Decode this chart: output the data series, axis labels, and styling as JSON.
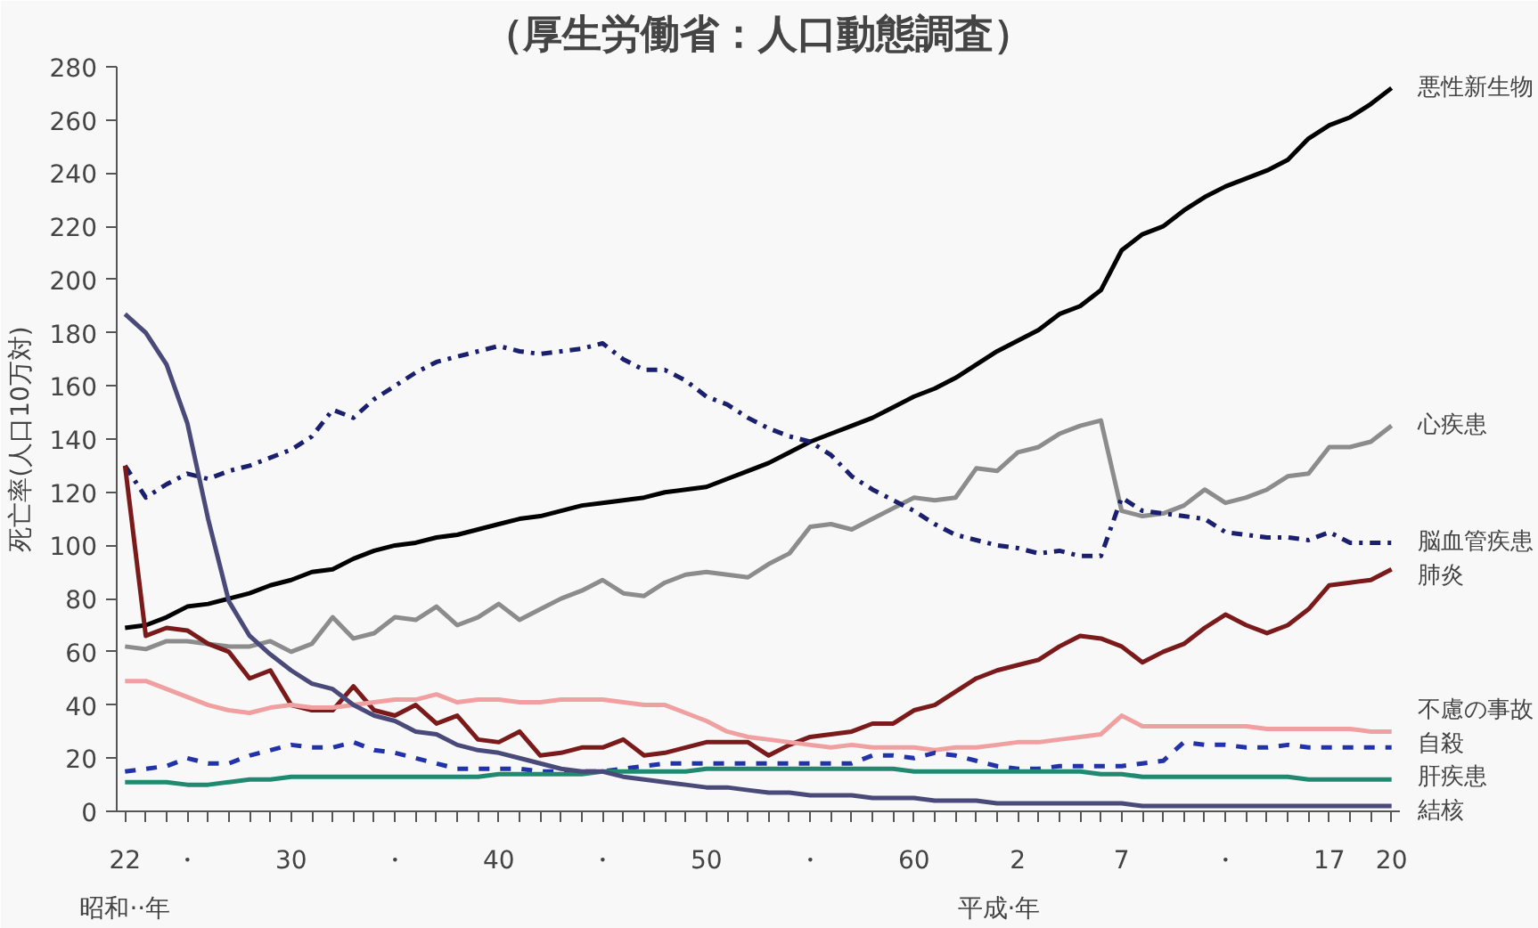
{
  "chart_data": {
    "type": "line",
    "title": "（厚生労働省：人口動態調査）",
    "ylabel": "死亡率(人口10万対)",
    "annotations": [
      "昭和··年",
      "平成·年"
    ],
    "ylim": [
      0,
      280
    ],
    "yticks": [
      0,
      20,
      40,
      60,
      80,
      100,
      120,
      140,
      160,
      180,
      200,
      220,
      240,
      260,
      280
    ],
    "categories": [
      "22",
      null,
      null,
      "・",
      null,
      null,
      null,
      null,
      "30",
      null,
      null,
      null,
      null,
      "・",
      null,
      null,
      null,
      null,
      "40",
      null,
      null,
      null,
      null,
      "・",
      null,
      null,
      null,
      null,
      "50",
      null,
      null,
      null,
      null,
      "・",
      null,
      null,
      null,
      null,
      "60",
      null,
      null,
      null,
      null,
      "2",
      null,
      null,
      null,
      null,
      "7",
      null,
      null,
      null,
      null,
      "・",
      null,
      null,
      null,
      null,
      "17",
      null,
      null,
      "20"
    ],
    "grid": false,
    "marker": "none",
    "series": [
      {
        "name": "悪性新生物",
        "color": "#000000",
        "line_style": "solid",
        "values": [
          69,
          70,
          73,
          77,
          78,
          80,
          82,
          85,
          87,
          90,
          91,
          95,
          98,
          100,
          101,
          103,
          104,
          106,
          108,
          110,
          111,
          113,
          115,
          116,
          117,
          118,
          120,
          121,
          122,
          125,
          128,
          131,
          135,
          139,
          142,
          145,
          148,
          152,
          156,
          159,
          163,
          168,
          173,
          177,
          181,
          187,
          190,
          196,
          211,
          217,
          220,
          226,
          231,
          235,
          238,
          241,
          245,
          253,
          258,
          261,
          266,
          272
        ]
      },
      {
        "name": "心疾患",
        "color": "#8c8c8c",
        "line_style": "solid",
        "values": [
          62,
          61,
          64,
          64,
          63,
          62,
          62,
          64,
          60,
          63,
          73,
          65,
          67,
          73,
          72,
          77,
          70,
          73,
          78,
          72,
          76,
          80,
          83,
          87,
          82,
          81,
          86,
          89,
          90,
          89,
          88,
          93,
          97,
          107,
          108,
          106,
          110,
          114,
          118,
          117,
          118,
          129,
          128,
          135,
          137,
          142,
          145,
          147,
          113,
          111,
          112,
          115,
          121,
          116,
          118,
          121,
          126,
          127,
          137,
          137,
          139,
          145
        ]
      },
      {
        "name": "脳血管疾患",
        "color": "#1a1f6e",
        "line_style": "dashdot",
        "values": [
          130,
          118,
          123,
          127,
          125,
          128,
          130,
          133,
          136,
          141,
          151,
          148,
          155,
          160,
          165,
          169,
          171,
          173,
          175,
          173,
          172,
          173,
          174,
          176,
          170,
          166,
          166,
          162,
          156,
          153,
          148,
          144,
          141,
          139,
          134,
          126,
          121,
          117,
          113,
          108,
          104,
          102,
          100,
          99,
          97,
          98,
          96,
          96,
          118,
          113,
          112,
          111,
          110,
          105,
          104,
          103,
          103,
          102,
          105,
          101,
          101,
          101
        ]
      },
      {
        "name": "肺炎",
        "color": "#7a1a1a",
        "line_style": "solid",
        "values": [
          130,
          66,
          69,
          68,
          63,
          60,
          50,
          53,
          40,
          38,
          38,
          47,
          38,
          36,
          40,
          33,
          36,
          27,
          26,
          30,
          21,
          22,
          24,
          24,
          27,
          21,
          22,
          24,
          26,
          26,
          26,
          21,
          25,
          28,
          29,
          30,
          33,
          33,
          38,
          40,
          45,
          50,
          53,
          55,
          57,
          62,
          66,
          65,
          62,
          56,
          60,
          63,
          69,
          74,
          70,
          67,
          70,
          76,
          85,
          86,
          87,
          91
        ]
      },
      {
        "name": "不慮の事故",
        "color": "#f0a0a0",
        "line_style": "solid",
        "values": [
          49,
          49,
          46,
          43,
          40,
          38,
          37,
          39,
          40,
          39,
          39,
          40,
          41,
          42,
          42,
          44,
          41,
          42,
          42,
          41,
          41,
          42,
          42,
          42,
          41,
          40,
          40,
          37,
          34,
          30,
          28,
          27,
          26,
          25,
          24,
          25,
          24,
          24,
          24,
          23,
          24,
          24,
          25,
          26,
          26,
          27,
          28,
          29,
          36,
          32,
          32,
          32,
          32,
          32,
          32,
          31,
          31,
          31,
          31,
          31,
          30,
          30
        ]
      },
      {
        "name": "自殺",
        "color": "#2233aa",
        "line_style": "dashed",
        "values": [
          15,
          16,
          17,
          20,
          18,
          18,
          21,
          23,
          25,
          24,
          24,
          26,
          23,
          22,
          20,
          18,
          16,
          16,
          16,
          16,
          15,
          15,
          15,
          15,
          16,
          17,
          18,
          18,
          18,
          18,
          18,
          18,
          18,
          18,
          18,
          18,
          21,
          21,
          20,
          22,
          21,
          19,
          17,
          16,
          16,
          17,
          17,
          17,
          17,
          18,
          19,
          26,
          25,
          25,
          24,
          24,
          25,
          24,
          24,
          24,
          24,
          24
        ]
      },
      {
        "name": "肝疾患",
        "color": "#1f8a70",
        "line_style": "solid",
        "values": [
          11,
          11,
          11,
          10,
          10,
          11,
          12,
          12,
          13,
          13,
          13,
          13,
          13,
          13,
          13,
          13,
          13,
          13,
          14,
          14,
          14,
          14,
          14,
          15,
          15,
          15,
          15,
          15,
          16,
          16,
          16,
          16,
          16,
          16,
          16,
          16,
          16,
          16,
          15,
          15,
          15,
          15,
          15,
          15,
          15,
          15,
          15,
          14,
          14,
          13,
          13,
          13,
          13,
          13,
          13,
          13,
          13,
          12,
          12,
          12,
          12,
          12
        ]
      },
      {
        "name": "結核",
        "color": "#4a4a7a",
        "line_style": "solid",
        "values": [
          187,
          180,
          168,
          146,
          110,
          79,
          66,
          59,
          53,
          48,
          46,
          40,
          36,
          34,
          30,
          29,
          25,
          23,
          22,
          20,
          18,
          16,
          15,
          15,
          13,
          12,
          11,
          10,
          9,
          9,
          8,
          7,
          7,
          6,
          6,
          6,
          5,
          5,
          5,
          4,
          4,
          4,
          3,
          3,
          3,
          3,
          3,
          3,
          3,
          2,
          2,
          2,
          2,
          2,
          2,
          2,
          2,
          2,
          2,
          2,
          2,
          2
        ]
      }
    ]
  }
}
